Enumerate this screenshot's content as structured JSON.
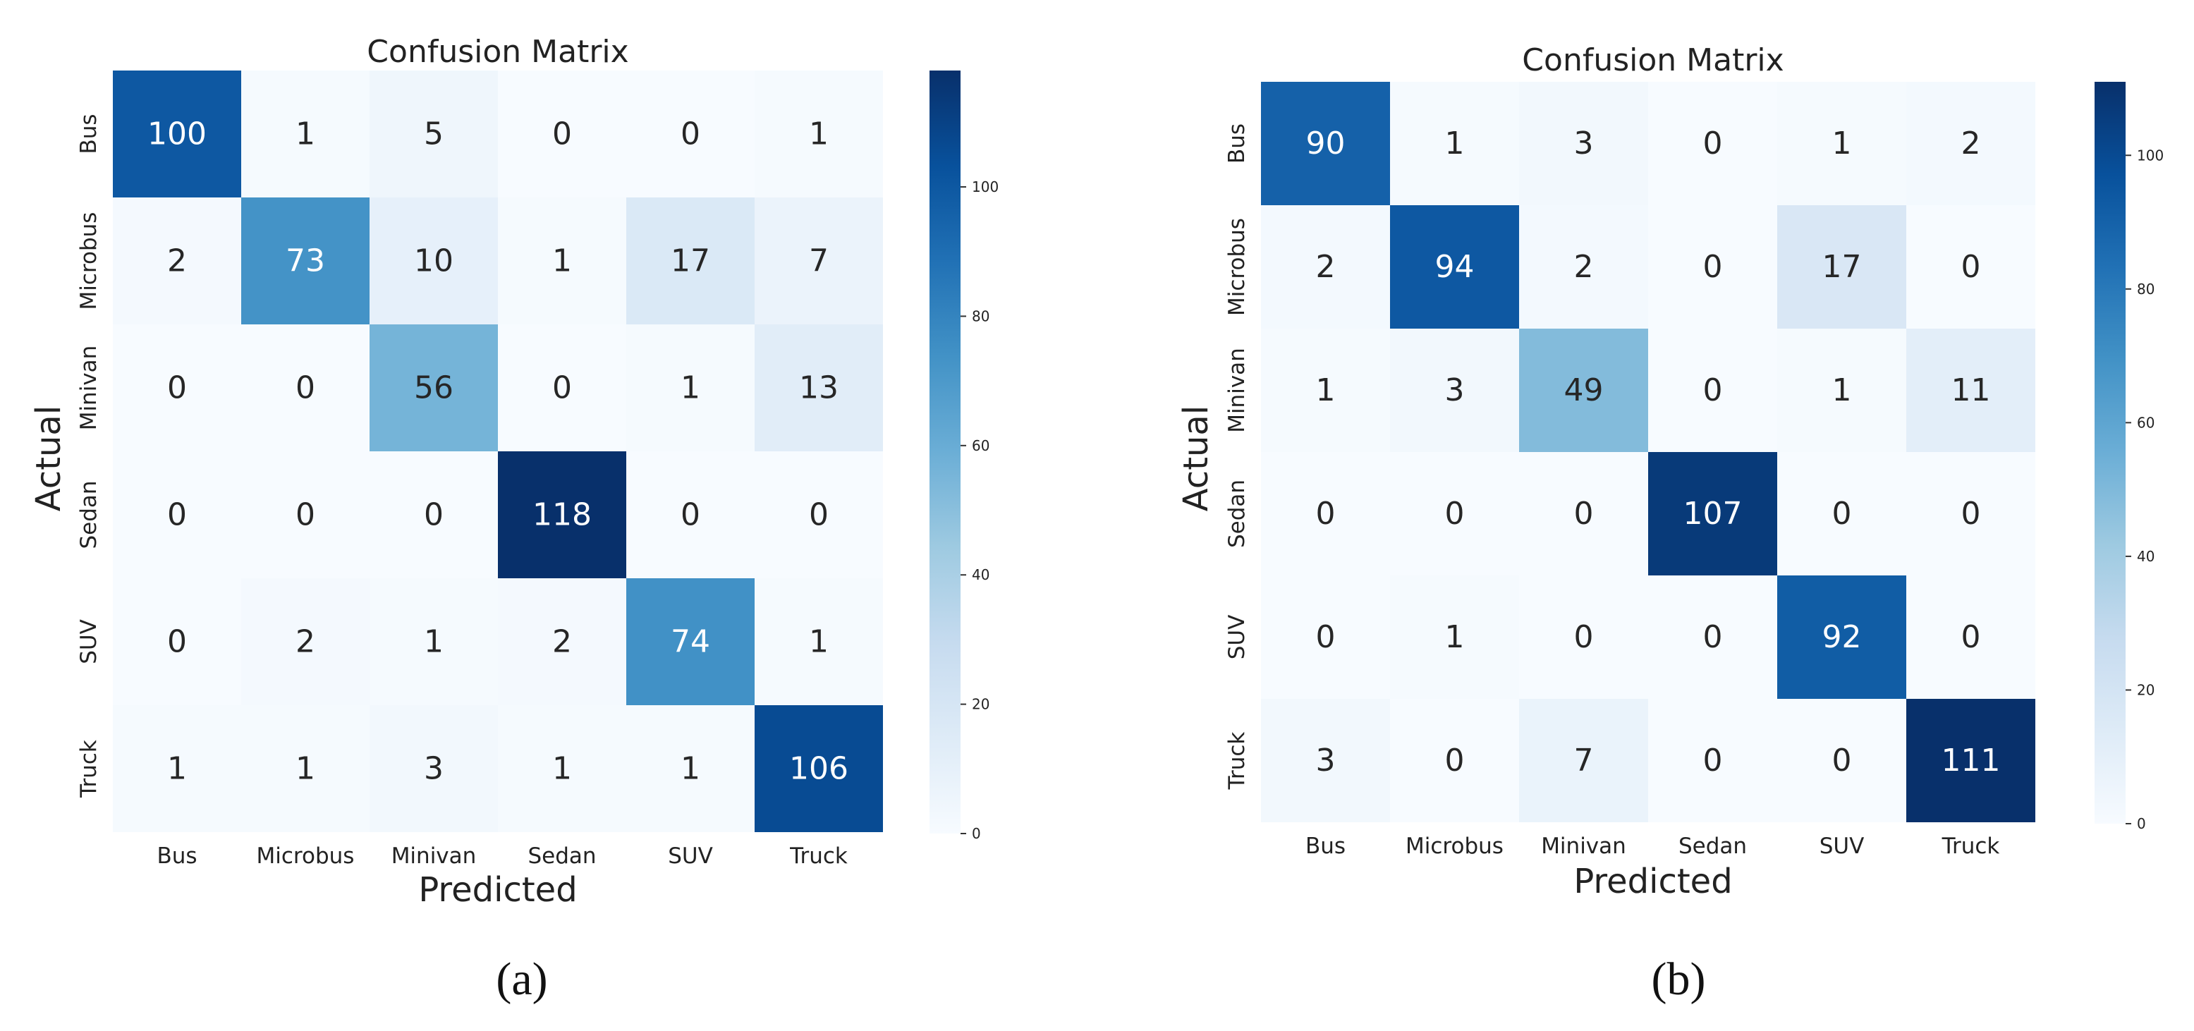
{
  "chart_data": [
    {
      "type": "heatmap",
      "title": "Confusion Matrix",
      "xlabel": "Predicted",
      "ylabel": "Actual",
      "x_categories": [
        "Bus",
        "Microbus",
        "Minivan",
        "Sedan",
        "SUV",
        "Truck"
      ],
      "y_categories": [
        "Bus",
        "Microbus",
        "Minivan",
        "Sedan",
        "SUV",
        "Truck"
      ],
      "values": [
        [
          100,
          1,
          5,
          0,
          0,
          1
        ],
        [
          2,
          73,
          10,
          1,
          17,
          7
        ],
        [
          0,
          0,
          56,
          0,
          1,
          13
        ],
        [
          0,
          0,
          0,
          118,
          0,
          0
        ],
        [
          0,
          2,
          1,
          2,
          74,
          1
        ],
        [
          1,
          1,
          3,
          1,
          1,
          106
        ]
      ],
      "colorbar": {
        "min": 0,
        "max": 118,
        "ticks": [
          0,
          20,
          40,
          60,
          80,
          100
        ]
      },
      "panel_label": "(a)"
    },
    {
      "type": "heatmap",
      "title": "Confusion Matrix",
      "xlabel": "Predicted",
      "ylabel": "Actual",
      "x_categories": [
        "Bus",
        "Microbus",
        "Minivan",
        "Sedan",
        "SUV",
        "Truck"
      ],
      "y_categories": [
        "Bus",
        "Microbus",
        "Minivan",
        "Sedan",
        "SUV",
        "Truck"
      ],
      "values": [
        [
          90,
          1,
          3,
          0,
          1,
          2
        ],
        [
          2,
          94,
          2,
          0,
          17,
          0
        ],
        [
          1,
          3,
          49,
          0,
          1,
          11
        ],
        [
          0,
          0,
          0,
          107,
          0,
          0
        ],
        [
          0,
          1,
          0,
          0,
          92,
          0
        ],
        [
          3,
          0,
          7,
          0,
          0,
          111
        ]
      ],
      "colorbar": {
        "min": 0,
        "max": 111,
        "ticks": [
          0,
          20,
          40,
          60,
          80,
          100
        ]
      },
      "panel_label": "(b)"
    }
  ]
}
